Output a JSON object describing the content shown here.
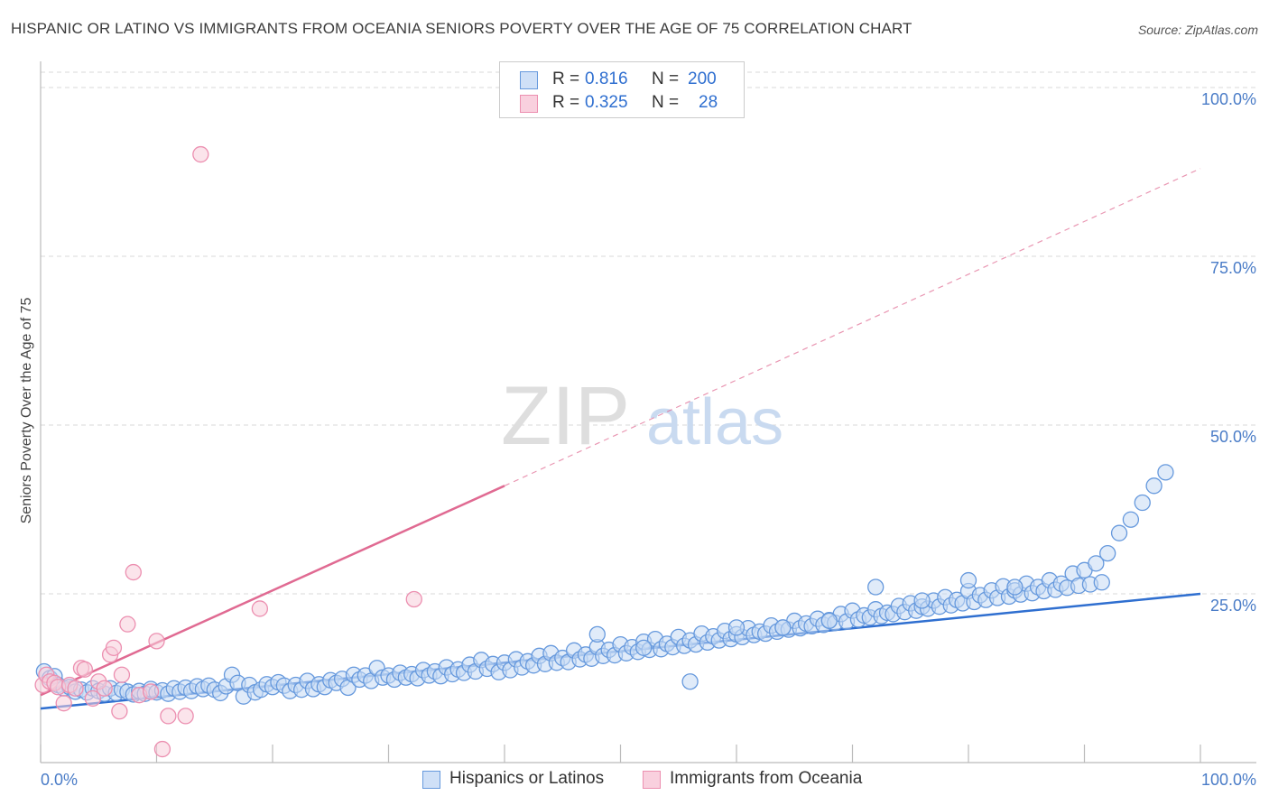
{
  "title": "HISPANIC OR LATINO VS IMMIGRANTS FROM OCEANIA SENIORS POVERTY OVER THE AGE OF 75 CORRELATION CHART",
  "source": "Source: ZipAtlas.com",
  "watermark": {
    "zip": "ZIP",
    "atlas": "atlas"
  },
  "colors": {
    "blue": "#6699dd",
    "blue_line": "#2f6fd0",
    "pink": "#ec8fb0",
    "pink_line": "#e06a92",
    "tick_label": "#4a7cc7",
    "grid": "#d8d8d8"
  },
  "stats": {
    "r_label": "R =",
    "n_label": "N =",
    "rows": [
      {
        "r": "0.816",
        "n": "200"
      },
      {
        "r": "0.325",
        "n": "28"
      }
    ]
  },
  "legend": [
    "Hispanics or Latinos",
    "Immigrants from Oceania"
  ],
  "chart_data": {
    "type": "scatter",
    "title": "HISPANIC OR LATINO VS IMMIGRANTS FROM OCEANIA SENIORS POVERTY OVER THE AGE OF 75 CORRELATION CHART",
    "xlabel": "",
    "ylabel": "Seniors Poverty Over the Age of 75",
    "xlim": [
      0,
      100
    ],
    "ylim": [
      0,
      100
    ],
    "x_tick_labels": [
      "0.0%",
      "100.0%"
    ],
    "y_tick_labels": [
      "25.0%",
      "50.0%",
      "75.0%",
      "100.0%"
    ],
    "y_ticks": [
      25,
      50,
      75,
      100
    ],
    "grid": true,
    "legend_position": "bottom",
    "series": [
      {
        "name": "Hispanics or Latinos",
        "color": "#6699dd",
        "trend": {
          "x": [
            0,
            100
          ],
          "y": [
            8,
            25
          ]
        },
        "points": [
          [
            0.3,
            13.5
          ],
          [
            0.8,
            12.5
          ],
          [
            1.2,
            12.8
          ],
          [
            1.5,
            11.5
          ],
          [
            2,
            11
          ],
          [
            2.5,
            11.2
          ],
          [
            3,
            10.5
          ],
          [
            3.5,
            10.8
          ],
          [
            4,
            10.4
          ],
          [
            4.5,
            11
          ],
          [
            5,
            10.6
          ],
          [
            5.5,
            10.2
          ],
          [
            6,
            11
          ],
          [
            6.5,
            10.3
          ],
          [
            7,
            10.8
          ],
          [
            7.5,
            10.5
          ],
          [
            8,
            10.1
          ],
          [
            8.5,
            10.6
          ],
          [
            9,
            10.2
          ],
          [
            9.5,
            10.9
          ],
          [
            10,
            10.4
          ],
          [
            10.5,
            10.7
          ],
          [
            11,
            10.2
          ],
          [
            11.5,
            11
          ],
          [
            12,
            10.5
          ],
          [
            12.5,
            11.1
          ],
          [
            13,
            10.6
          ],
          [
            13.5,
            11.3
          ],
          [
            14,
            10.9
          ],
          [
            14.5,
            11.4
          ],
          [
            15,
            10.8
          ],
          [
            15.5,
            10.3
          ],
          [
            16,
            11.3
          ],
          [
            16.5,
            13
          ],
          [
            17,
            11.8
          ],
          [
            17.5,
            9.8
          ],
          [
            18,
            11.5
          ],
          [
            18.5,
            10.4
          ],
          [
            19,
            10.8
          ],
          [
            19.5,
            11.6
          ],
          [
            20,
            11.2
          ],
          [
            20.5,
            11.9
          ],
          [
            21,
            11.4
          ],
          [
            21.5,
            10.6
          ],
          [
            22,
            11.5
          ],
          [
            22.5,
            10.8
          ],
          [
            23,
            12.1
          ],
          [
            23.5,
            10.9
          ],
          [
            24,
            11.6
          ],
          [
            24.5,
            11.2
          ],
          [
            25,
            12.2
          ],
          [
            25.5,
            11.8
          ],
          [
            26,
            12.4
          ],
          [
            26.5,
            11.1
          ],
          [
            27,
            13
          ],
          [
            27.5,
            12.3
          ],
          [
            28,
            12.9
          ],
          [
            28.5,
            12.1
          ],
          [
            29,
            14
          ],
          [
            29.5,
            12.6
          ],
          [
            30,
            12.9
          ],
          [
            30.5,
            12.3
          ],
          [
            31,
            13.3
          ],
          [
            31.5,
            12.6
          ],
          [
            32,
            13.1
          ],
          [
            32.5,
            12.5
          ],
          [
            33,
            13.7
          ],
          [
            33.5,
            12.9
          ],
          [
            34,
            13.5
          ],
          [
            34.5,
            12.8
          ],
          [
            35,
            14.1
          ],
          [
            35.5,
            13.1
          ],
          [
            36,
            13.8
          ],
          [
            36.5,
            13.3
          ],
          [
            37,
            14.5
          ],
          [
            37.5,
            13.5
          ],
          [
            38,
            15.2
          ],
          [
            38.5,
            13.9
          ],
          [
            39,
            14.6
          ],
          [
            39.5,
            13.4
          ],
          [
            40,
            14.8
          ],
          [
            40.5,
            13.7
          ],
          [
            41,
            15.3
          ],
          [
            41.5,
            14.1
          ],
          [
            42,
            15
          ],
          [
            42.5,
            14.4
          ],
          [
            43,
            15.8
          ],
          [
            43.5,
            14.6
          ],
          [
            44,
            16.2
          ],
          [
            44.5,
            14.8
          ],
          [
            45,
            15.5
          ],
          [
            45.5,
            14.9
          ],
          [
            46,
            16.6
          ],
          [
            46.5,
            15.3
          ],
          [
            47,
            16
          ],
          [
            47.5,
            15.4
          ],
          [
            48,
            17.1
          ],
          [
            48.5,
            15.8
          ],
          [
            49,
            16.7
          ],
          [
            49.5,
            15.9
          ],
          [
            50,
            17.5
          ],
          [
            50.5,
            16.2
          ],
          [
            51,
            17.1
          ],
          [
            51.5,
            16.4
          ],
          [
            52,
            17.9
          ],
          [
            52.5,
            16.7
          ],
          [
            53,
            18.3
          ],
          [
            53.5,
            16.8
          ],
          [
            54,
            17.6
          ],
          [
            54.5,
            17.1
          ],
          [
            55,
            18.6
          ],
          [
            55.5,
            17.3
          ],
          [
            56,
            18.1
          ],
          [
            56.5,
            17.5
          ],
          [
            57,
            19.1
          ],
          [
            57.5,
            17.8
          ],
          [
            58,
            18.7
          ],
          [
            58.5,
            18.1
          ],
          [
            59,
            19.5
          ],
          [
            59.5,
            18.3
          ],
          [
            60,
            19
          ],
          [
            60.5,
            18.6
          ],
          [
            61,
            19.9
          ],
          [
            61.5,
            18.9
          ],
          [
            62,
            19.4
          ],
          [
            62.5,
            19.1
          ],
          [
            63,
            20.3
          ],
          [
            63.5,
            19.4
          ],
          [
            64,
            20
          ],
          [
            64.5,
            19.7
          ],
          [
            65,
            21
          ],
          [
            65.5,
            19.9
          ],
          [
            66,
            20.6
          ],
          [
            66.5,
            20.2
          ],
          [
            67,
            21.3
          ],
          [
            67.5,
            20.4
          ],
          [
            68,
            21.1
          ],
          [
            68.5,
            20.7
          ],
          [
            69,
            22
          ],
          [
            69.5,
            20.9
          ],
          [
            70,
            22.5
          ],
          [
            70.5,
            21.2
          ],
          [
            71,
            21.8
          ],
          [
            71.5,
            21.5
          ],
          [
            72,
            22.7
          ],
          [
            72.5,
            21.7
          ],
          [
            73,
            22.2
          ],
          [
            73.5,
            22
          ],
          [
            74,
            23.2
          ],
          [
            74.5,
            22.3
          ],
          [
            75,
            23.6
          ],
          [
            75.5,
            22.5
          ],
          [
            76,
            23.1
          ],
          [
            76.5,
            22.8
          ],
          [
            77,
            24
          ],
          [
            77.5,
            23.1
          ],
          [
            78,
            24.5
          ],
          [
            78.5,
            23.3
          ],
          [
            79,
            24.1
          ],
          [
            79.5,
            23.6
          ],
          [
            80,
            25.4
          ],
          [
            80.5,
            23.8
          ],
          [
            81,
            24.8
          ],
          [
            81.5,
            24.1
          ],
          [
            82,
            25.5
          ],
          [
            82.5,
            24.4
          ],
          [
            83,
            26.1
          ],
          [
            83.5,
            24.6
          ],
          [
            84,
            25.5
          ],
          [
            84.5,
            24.9
          ],
          [
            85,
            26.5
          ],
          [
            85.5,
            25.1
          ],
          [
            86,
            26
          ],
          [
            86.5,
            25.4
          ],
          [
            87,
            27
          ],
          [
            87.5,
            25.6
          ],
          [
            88,
            26.5
          ],
          [
            88.5,
            25.9
          ],
          [
            89,
            28
          ],
          [
            89.5,
            26.2
          ],
          [
            90,
            28.5
          ],
          [
            90.5,
            26.4
          ],
          [
            91,
            29.5
          ],
          [
            91.5,
            26.7
          ],
          [
            92,
            31
          ],
          [
            93,
            34
          ],
          [
            94,
            36
          ],
          [
            95,
            38.5
          ],
          [
            96,
            41
          ],
          [
            97,
            43
          ],
          [
            48,
            19
          ],
          [
            52,
            17
          ],
          [
            56,
            12
          ],
          [
            60,
            20
          ],
          [
            64,
            20
          ],
          [
            68,
            21
          ],
          [
            72,
            26
          ],
          [
            76,
            24
          ],
          [
            80,
            27
          ],
          [
            84,
            26
          ]
        ]
      },
      {
        "name": "Immigrants from Oceania",
        "color": "#ec8fb0",
        "trend": {
          "x": [
            0,
            40
          ],
          "y": [
            10,
            41
          ]
        },
        "trend_extension": {
          "x": [
            40,
            100
          ],
          "y": [
            41,
            88
          ]
        },
        "points": [
          [
            0.2,
            11.5
          ],
          [
            0.5,
            13
          ],
          [
            0.8,
            12
          ],
          [
            1.2,
            11.8
          ],
          [
            1.5,
            11.2
          ],
          [
            2,
            8.8
          ],
          [
            2.5,
            11.5
          ],
          [
            3,
            11
          ],
          [
            3.5,
            14
          ],
          [
            3.8,
            13.8
          ],
          [
            4.5,
            9.5
          ],
          [
            5,
            12
          ],
          [
            5.5,
            11
          ],
          [
            6,
            16
          ],
          [
            6.3,
            17
          ],
          [
            6.8,
            7.6
          ],
          [
            7,
            13
          ],
          [
            7.5,
            20.5
          ],
          [
            8,
            28.2
          ],
          [
            8.5,
            10
          ],
          [
            9.5,
            10.5
          ],
          [
            10,
            18
          ],
          [
            10.5,
            2
          ],
          [
            11,
            6.9
          ],
          [
            12.5,
            6.9
          ],
          [
            13.8,
            90.1
          ],
          [
            18.9,
            22.8
          ],
          [
            32.2,
            24.2
          ]
        ]
      }
    ]
  }
}
